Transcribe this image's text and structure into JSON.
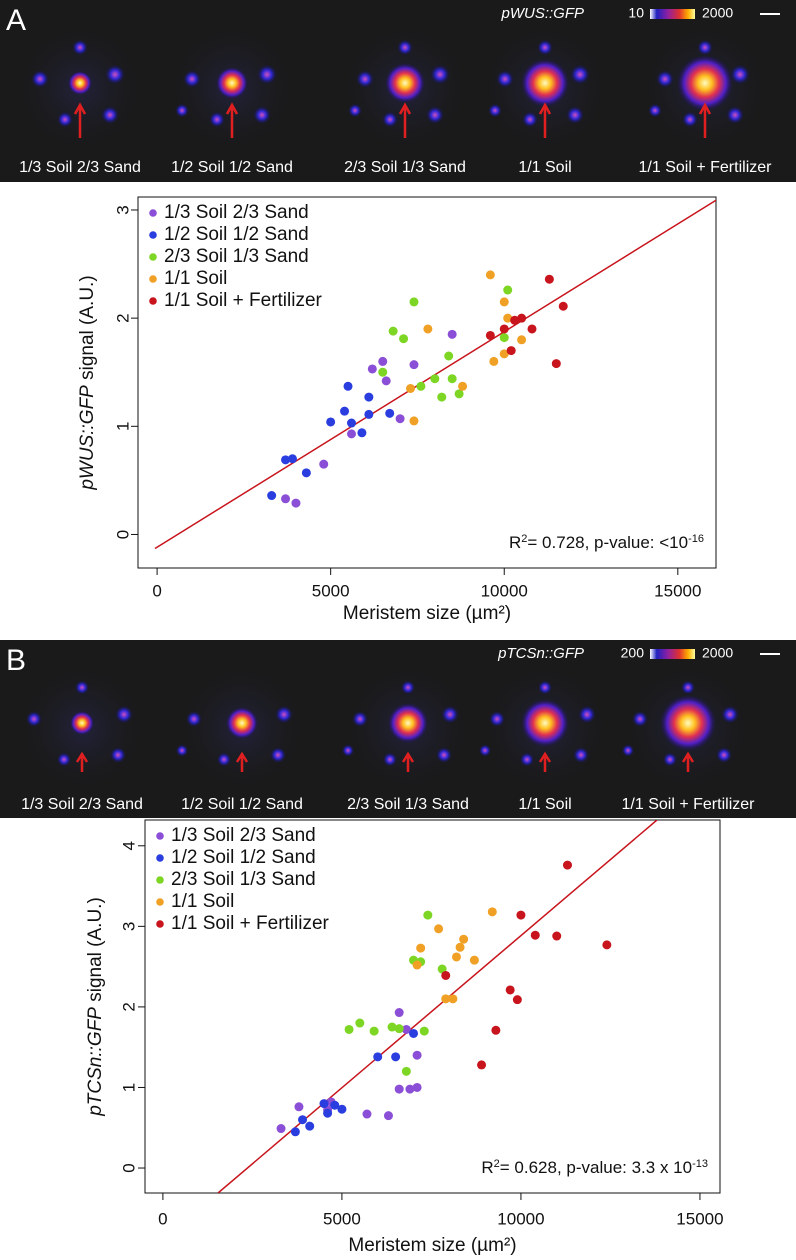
{
  "chart_data": [
    {
      "type": "scatter",
      "xlabel": "Meristem size (µm²)",
      "ylabel": [
        "pWUS::GFP",
        " signal (A.U.)"
      ],
      "xlim": [
        -550,
        16100
      ],
      "ylim": [
        -0.31,
        3.12
      ],
      "xticks": [
        0,
        5000,
        10000,
        15000
      ],
      "yticks": [
        0,
        1,
        2,
        3
      ],
      "legend": "upper left",
      "series": [
        {
          "name": "1/3 Soil 2/3 Sand",
          "color": "#8a4fd6",
          "x": [
            3700,
            4000,
            4800,
            5600,
            6200,
            6500,
            6600,
            7400,
            7000,
            8500
          ],
          "values": [
            0.33,
            0.29,
            0.65,
            0.93,
            1.53,
            1.6,
            1.42,
            1.57,
            1.07,
            1.85
          ]
        },
        {
          "name": "1/2 Soil 1/2 Sand",
          "color": "#2a3ee0",
          "x": [
            3300,
            3700,
            3900,
            4300,
            5000,
            5400,
            5500,
            5600,
            5900,
            6100,
            6100,
            6700
          ],
          "values": [
            0.36,
            0.69,
            0.7,
            0.57,
            1.04,
            1.14,
            1.37,
            1.03,
            0.94,
            1.11,
            1.27,
            1.12
          ]
        },
        {
          "name": "2/3 Soil 1/3 Sand",
          "color": "#7ed624",
          "x": [
            6800,
            7100,
            6500,
            7400,
            7600,
            8000,
            8200,
            8400,
            8500,
            8700,
            10000,
            10100
          ],
          "values": [
            1.88,
            1.81,
            1.5,
            2.15,
            1.37,
            1.44,
            1.27,
            1.65,
            1.44,
            1.3,
            1.82,
            2.26
          ]
        },
        {
          "name": "1/1 Soil",
          "color": "#f0a024",
          "x": [
            7300,
            7400,
            7800,
            8800,
            9600,
            10000,
            9700,
            10000,
            10100,
            10500
          ],
          "values": [
            1.35,
            1.05,
            1.9,
            1.37,
            2.4,
            1.67,
            1.6,
            2.15,
            2.0,
            1.8
          ]
        },
        {
          "name": "1/1 Soil + Fertilizer",
          "color": "#c8141c",
          "x": [
            9600,
            10000,
            10200,
            10300,
            10500,
            10800,
            11300,
            11500,
            11700
          ],
          "values": [
            1.84,
            1.9,
            1.7,
            1.98,
            2.0,
            1.9,
            2.36,
            1.58,
            2.11
          ]
        }
      ],
      "fit": {
        "color": "#c8141c",
        "x": [
          -60,
          16100
        ],
        "y": [
          -0.13,
          3.09
        ]
      },
      "annotation": [
        "R",
        "2",
        "= 0.728, p-value: <10",
        "-16"
      ]
    },
    {
      "type": "scatter",
      "xlabel": "Meristem size (µm²)",
      "ylabel": [
        "pTCSn::GFP",
        " signal (A.U.)"
      ],
      "xlim": [
        -500,
        15560
      ],
      "ylim": [
        -0.31,
        4.32
      ],
      "xticks": [
        0,
        5000,
        10000,
        15000
      ],
      "yticks": [
        0,
        1,
        2,
        3,
        4
      ],
      "legend": "upper left",
      "series": [
        {
          "name": "1/3 Soil 2/3 Sand",
          "color": "#8a4fd6",
          "x": [
            3300,
            3800,
            4600,
            4700,
            5700,
            6300,
            6600,
            6600,
            6900,
            7100,
            7100,
            6800
          ],
          "values": [
            0.49,
            0.76,
            0.72,
            0.82,
            0.67,
            0.65,
            0.98,
            1.93,
            0.98,
            1.0,
            1.4,
            1.72
          ]
        },
        {
          "name": "1/2 Soil 1/2 Sand",
          "color": "#2a3ee0",
          "x": [
            3700,
            3900,
            4100,
            4500,
            4600,
            4800,
            5000,
            6000,
            6500,
            7000
          ],
          "values": [
            0.45,
            0.6,
            0.52,
            0.8,
            0.68,
            0.78,
            0.73,
            1.38,
            1.38,
            1.67
          ]
        },
        {
          "name": "2/3 Soil 1/3 Sand",
          "color": "#7ed624",
          "x": [
            5200,
            5500,
            5900,
            6400,
            6600,
            6800,
            7000,
            7200,
            7300,
            7400,
            7800
          ],
          "values": [
            1.72,
            1.8,
            1.7,
            1.75,
            1.73,
            1.2,
            2.58,
            2.56,
            1.7,
            3.14,
            2.47
          ]
        },
        {
          "name": "1/1 Soil",
          "color": "#f0a024",
          "x": [
            7100,
            7200,
            7700,
            7900,
            8100,
            8200,
            8300,
            8400,
            8700,
            9200
          ],
          "values": [
            2.52,
            2.73,
            2.97,
            2.1,
            2.1,
            2.62,
            2.74,
            2.84,
            2.58,
            3.18
          ]
        },
        {
          "name": "1/1 Soil + Fertilizer",
          "color": "#c8141c",
          "x": [
            7900,
            8900,
            9300,
            9700,
            9900,
            10000,
            10400,
            11000,
            11300,
            12400
          ],
          "values": [
            2.39,
            1.28,
            1.71,
            2.21,
            2.09,
            3.14,
            2.89,
            2.88,
            3.76,
            2.77
          ]
        }
      ],
      "fit": {
        "color": "#c8141c",
        "x": [
          1540,
          13800
        ],
        "y": [
          -0.31,
          4.32
        ]
      },
      "annotation": [
        "R",
        "2",
        "= 0.628, p-value: 3.3 x 10",
        "-13"
      ]
    }
  ],
  "image_strips": [
    {
      "letter": "A",
      "reporter": "pWUS::GFP",
      "scale_min": 10,
      "scale_max": 2000,
      "labels": [
        "1/3 Soil 2/3 Sand",
        "1/2 Soil 1/2 Sand",
        "2/3 Soil 1/3 Sand",
        "1/1 Soil",
        "1/1 Soil + Fertilizer"
      ]
    },
    {
      "letter": "B",
      "reporter": "pTCSn::GFP",
      "scale_min": 200,
      "scale_max": 2000,
      "labels": [
        "1/3 Soil 2/3 Sand",
        "1/2 Soil 1/2 Sand",
        "2/3 Soil 1/3 Sand",
        "1/1 Soil",
        "1/1 Soil + Fertilizer"
      ]
    }
  ]
}
